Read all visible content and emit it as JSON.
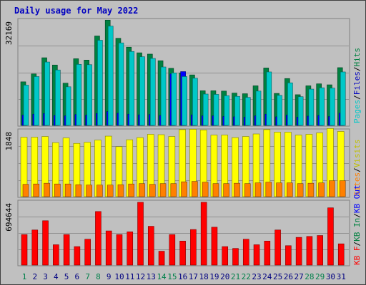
{
  "chart_data": [
    {
      "type": "bar",
      "panel": "hits-files-pages",
      "title": "Daily usage for May 2022",
      "ymax_label": "32169",
      "ylim": [
        0,
        32169
      ],
      "categories": [
        "1",
        "2",
        "3",
        "4",
        "5",
        "6",
        "7",
        "8",
        "9",
        "10",
        "11",
        "12",
        "13",
        "14",
        "15",
        "16",
        "17",
        "18",
        "19",
        "20",
        "21",
        "22",
        "23",
        "24",
        "25",
        "26",
        "27",
        "28",
        "29",
        "30",
        "31"
      ],
      "weekend_days": [
        "1",
        "7",
        "8",
        "14",
        "15",
        "21",
        "22",
        "28",
        "29"
      ],
      "legend": [
        "Pages",
        "Files",
        "Hits"
      ],
      "grid": true,
      "series": [
        {
          "name": "Hits",
          "color": "#008040",
          "values": [
            13200,
            15600,
            20500,
            18300,
            12800,
            20200,
            19800,
            27100,
            31900,
            26400,
            23700,
            22000,
            21600,
            19600,
            17300,
            15900,
            15300,
            10500,
            10500,
            10400,
            9800,
            9600,
            12000,
            17400,
            9700,
            14200,
            9300,
            12000,
            12600,
            12300,
            17500
          ]
        },
        {
          "name": "Files",
          "color": "#00c8c8",
          "values": [
            12200,
            14800,
            19200,
            16800,
            11700,
            18500,
            18400,
            25800,
            30100,
            25000,
            22400,
            20800,
            20300,
            17700,
            15900,
            14800,
            14300,
            9500,
            9400,
            9000,
            8800,
            8500,
            10400,
            16200,
            9100,
            12900,
            8700,
            11000,
            11400,
            11300,
            16200
          ]
        },
        {
          "name": "Pages",
          "color": "#0000ff",
          "values": [
            3100,
            3400,
            3600,
            3000,
            2900,
            3300,
            3100,
            3600,
            4200,
            3700,
            3400,
            3200,
            3300,
            3000,
            15600,
            16300,
            3200,
            2900,
            2900,
            2700,
            2600,
            2500,
            2900,
            3400,
            2600,
            3100,
            2500,
            2800,
            3000,
            2700,
            3700
          ]
        }
      ]
    },
    {
      "type": "bar",
      "panel": "sites-visits",
      "ymax_label": "1848",
      "ylim": [
        0,
        1848
      ],
      "legend": [
        "Sites",
        "Visits"
      ],
      "grid": true,
      "series": [
        {
          "name": "Visits",
          "color": "#ffff00",
          "values": [
            1640,
            1640,
            1660,
            1490,
            1620,
            1470,
            1500,
            1560,
            1670,
            1380,
            1570,
            1630,
            1720,
            1710,
            1660,
            1850,
            1860,
            1840,
            1700,
            1700,
            1630,
            1660,
            1730,
            1850,
            1780,
            1780,
            1700,
            1720,
            1760,
            1880,
            1800
          ]
        },
        {
          "name": "Sites",
          "color": "#ff8000",
          "values": [
            340,
            350,
            370,
            350,
            350,
            330,
            320,
            320,
            320,
            330,
            350,
            360,
            340,
            360,
            360,
            410,
            420,
            400,
            360,
            360,
            370,
            360,
            380,
            400,
            380,
            380,
            360,
            370,
            380,
            440,
            440
          ]
        }
      ]
    },
    {
      "type": "bar",
      "panel": "kbytes",
      "ymax_label": "694644",
      "ylim": [
        0,
        694644
      ],
      "legend": [
        "KB F",
        "KB In",
        "KB Out"
      ],
      "grid": true,
      "series": [
        {
          "name": "KB F",
          "color": "#ff0000",
          "values": [
            330000,
            380000,
            480000,
            220000,
            330000,
            200000,
            280000,
            580000,
            370000,
            330000,
            360000,
            680000,
            420000,
            150000,
            330000,
            260000,
            385000,
            680000,
            410000,
            200000,
            180000,
            280000,
            220000,
            260000,
            380000,
            210000,
            300000,
            310000,
            320000,
            620000,
            230000
          ]
        }
      ]
    }
  ]
}
